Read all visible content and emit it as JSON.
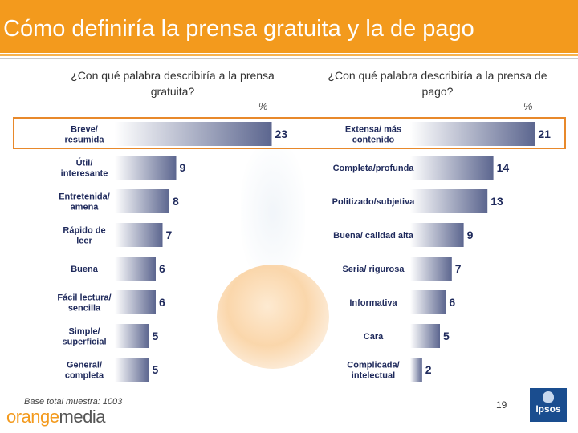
{
  "header": {
    "title": "Cómo definiría la prensa gratuita y la de pago"
  },
  "left": {
    "question": "¿Con qué palabra describiría a la prensa gratuita?",
    "percent_label": "%"
  },
  "right": {
    "question": "¿Con qué palabra describiría a la prensa de pago?",
    "percent_label": "%"
  },
  "colors": {
    "accent": "#f39a1d",
    "bar_light": "#ffffff",
    "bar_dark": "#5c668f",
    "text": "#1f2a5c",
    "highlight": "#e8892b"
  },
  "chart_data": [
    {
      "type": "bar",
      "orientation": "horizontal",
      "title": "¿Con qué palabra describiría a la prensa gratuita?",
      "unit": "%",
      "categories": [
        [
          "Breve/",
          "resumida"
        ],
        [
          "Útil/",
          "interesante"
        ],
        [
          "Entretenida/",
          "amena"
        ],
        [
          "Rápido de",
          "leer"
        ],
        [
          "Buena"
        ],
        [
          "Fácil lectura/",
          "sencilla"
        ],
        [
          "Simple/",
          "superficial"
        ],
        [
          "General/",
          "completa"
        ]
      ],
      "values": [
        23,
        9,
        8,
        7,
        6,
        6,
        5,
        5
      ],
      "highlighted_index": 0
    },
    {
      "type": "bar",
      "orientation": "horizontal",
      "title": "¿Con qué palabra describiría a la prensa de pago?",
      "unit": "%",
      "categories": [
        [
          "Extensa/ más",
          "contenido"
        ],
        [
          "Completa/profunda"
        ],
        [
          "Politizado/subjetiva"
        ],
        [
          "Buena/ calidad alta"
        ],
        [
          "Seria/ rigurosa"
        ],
        [
          "Informativa"
        ],
        [
          "Cara"
        ],
        [
          "Complicada/",
          "intelectual"
        ]
      ],
      "values": [
        21,
        14,
        13,
        9,
        7,
        6,
        5,
        2
      ],
      "highlighted_index": 0
    }
  ],
  "footer": {
    "base_note": "Base total muestra: 1003",
    "logo_part1": "orange",
    "logo_part2": "media",
    "page_number": "19",
    "ipsos_label": "Ipsos"
  }
}
